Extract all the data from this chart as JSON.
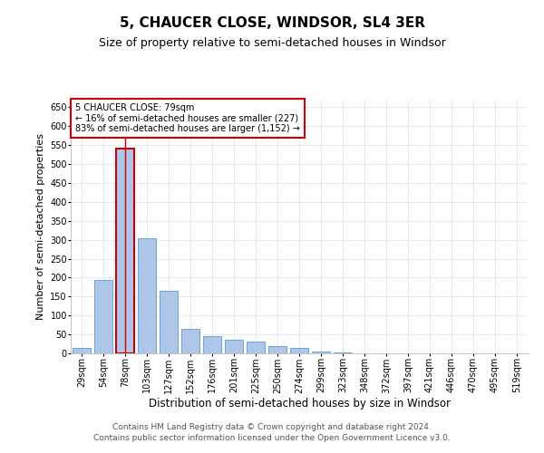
{
  "title": "5, CHAUCER CLOSE, WINDSOR, SL4 3ER",
  "subtitle": "Size of property relative to semi-detached houses in Windsor",
  "xlabel": "Distribution of semi-detached houses by size in Windsor",
  "ylabel": "Number of semi-detached properties",
  "categories": [
    "29sqm",
    "54sqm",
    "78sqm",
    "103sqm",
    "127sqm",
    "152sqm",
    "176sqm",
    "201sqm",
    "225sqm",
    "250sqm",
    "274sqm",
    "299sqm",
    "323sqm",
    "348sqm",
    "372sqm",
    "397sqm",
    "421sqm",
    "446sqm",
    "470sqm",
    "495sqm",
    "519sqm"
  ],
  "values": [
    15,
    195,
    540,
    305,
    165,
    65,
    45,
    35,
    30,
    20,
    15,
    5,
    2,
    0,
    0,
    0,
    1,
    0,
    0,
    1,
    1
  ],
  "bar_color": "#aec6e8",
  "bar_edge_color": "#5b9bd5",
  "highlight_index": 2,
  "highlight_bar_edge_color": "#cc0000",
  "ylim": [
    0,
    670
  ],
  "yticks": [
    0,
    50,
    100,
    150,
    200,
    250,
    300,
    350,
    400,
    450,
    500,
    550,
    600,
    650
  ],
  "annotation_title": "5 CHAUCER CLOSE: 79sqm",
  "annotation_line1": "← 16% of semi-detached houses are smaller (227)",
  "annotation_line2": "83% of semi-detached houses are larger (1,152) →",
  "annotation_box_color": "#ffffff",
  "annotation_box_edge": "#cc0000",
  "background_color": "#ffffff",
  "grid_color": "#dde8f0",
  "footer1": "Contains HM Land Registry data © Crown copyright and database right 2024.",
  "footer2": "Contains public sector information licensed under the Open Government Licence v3.0.",
  "title_fontsize": 11,
  "subtitle_fontsize": 9,
  "xlabel_fontsize": 8.5,
  "ylabel_fontsize": 8,
  "tick_fontsize": 7,
  "annotation_fontsize": 7,
  "footer_fontsize": 6.5
}
